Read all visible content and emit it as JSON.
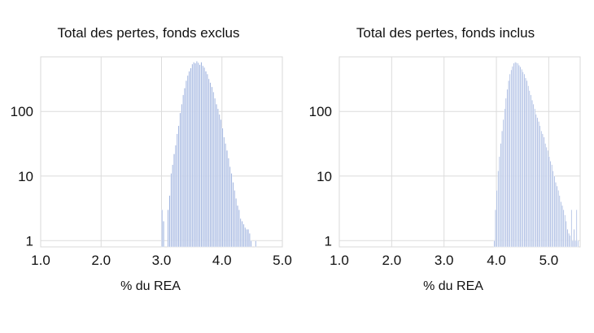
{
  "chart_data": [
    {
      "type": "bar",
      "title": "Total des pertes, fonds exclus",
      "xlabel": "% du REA",
      "ylabel": "",
      "x_scale": "linear",
      "y_scale": "log",
      "xlim": [
        1.0,
        5.0
      ],
      "ylim": [
        0.8,
        700
      ],
      "xticks": [
        1.0,
        2.0,
        3.0,
        4.0,
        5.0
      ],
      "xtick_labels": [
        "1.0",
        "2.0",
        "3.0",
        "4.0",
        "5.0"
      ],
      "yticks": [
        1,
        10,
        100
      ],
      "ytick_labels": [
        "1",
        "10",
        "100"
      ],
      "grid": true,
      "bar_color": "#9fb3df",
      "bin_width": 0.025,
      "x": [
        3.0,
        3.025,
        3.05,
        3.075,
        3.1,
        3.125,
        3.15,
        3.175,
        3.2,
        3.225,
        3.25,
        3.275,
        3.3,
        3.325,
        3.35,
        3.375,
        3.4,
        3.425,
        3.45,
        3.475,
        3.5,
        3.525,
        3.55,
        3.575,
        3.6,
        3.625,
        3.65,
        3.675,
        3.7,
        3.725,
        3.75,
        3.775,
        3.8,
        3.825,
        3.85,
        3.875,
        3.9,
        3.925,
        3.95,
        3.975,
        4.0,
        4.025,
        4.05,
        4.075,
        4.1,
        4.125,
        4.15,
        4.175,
        4.2,
        4.225,
        4.25,
        4.275,
        4.3,
        4.325,
        4.35,
        4.375,
        4.4,
        4.425,
        4.45,
        4.475,
        4.5,
        4.525,
        4.55,
        4.575
      ],
      "values": [
        3,
        2,
        0,
        0,
        3,
        5,
        11,
        15,
        22,
        30,
        45,
        60,
        95,
        130,
        180,
        230,
        300,
        360,
        420,
        470,
        540,
        580,
        560,
        600,
        570,
        530,
        580,
        510,
        480,
        420,
        380,
        320,
        280,
        240,
        200,
        160,
        130,
        110,
        90,
        75,
        55,
        40,
        32,
        25,
        19,
        14,
        11,
        8,
        6,
        4.5,
        3.5,
        3,
        2.2,
        2,
        1.8,
        1.6,
        1.5,
        1.5,
        1.3,
        1,
        0,
        0,
        1,
        0
      ]
    },
    {
      "type": "bar",
      "title": "Total des pertes, fonds inclus",
      "xlabel": "% du REA",
      "ylabel": "",
      "x_scale": "linear",
      "y_scale": "log",
      "xlim": [
        1.0,
        5.6
      ],
      "ylim": [
        0.8,
        700
      ],
      "xticks": [
        1.0,
        2.0,
        3.0,
        4.0,
        5.0
      ],
      "xtick_labels": [
        "1.0",
        "2.0",
        "3.0",
        "4.0",
        "5.0"
      ],
      "yticks": [
        1,
        10,
        100
      ],
      "ytick_labels": [
        "1",
        "10",
        "100"
      ],
      "grid": true,
      "bar_color": "#9fb3df",
      "bin_width": 0.025,
      "x": [
        3.95,
        3.975,
        4.0,
        4.025,
        4.05,
        4.075,
        4.1,
        4.125,
        4.15,
        4.175,
        4.2,
        4.225,
        4.25,
        4.275,
        4.3,
        4.325,
        4.35,
        4.375,
        4.4,
        4.425,
        4.45,
        4.475,
        4.5,
        4.525,
        4.55,
        4.575,
        4.6,
        4.625,
        4.65,
        4.675,
        4.7,
        4.725,
        4.75,
        4.775,
        4.8,
        4.825,
        4.85,
        4.875,
        4.9,
        4.925,
        4.95,
        4.975,
        5.0,
        5.025,
        5.05,
        5.075,
        5.1,
        5.125,
        5.15,
        5.175,
        5.2,
        5.225,
        5.25,
        5.275,
        5.3,
        5.325,
        5.35,
        5.375,
        5.4,
        5.425,
        5.45,
        5.475,
        5.5,
        5.525,
        5.55
      ],
      "values": [
        1,
        3,
        6,
        12,
        20,
        32,
        50,
        75,
        110,
        160,
        220,
        300,
        380,
        440,
        500,
        560,
        580,
        570,
        560,
        520,
        490,
        450,
        410,
        380,
        330,
        300,
        250,
        210,
        180,
        150,
        130,
        110,
        90,
        80,
        70,
        60,
        50,
        45,
        40,
        32,
        28,
        25,
        20,
        17,
        15,
        12,
        10,
        8,
        7,
        6,
        5,
        4,
        3.5,
        3,
        2.5,
        2,
        1.5,
        1.3,
        1.2,
        3,
        1,
        1.5,
        1,
        3,
        1
      ]
    }
  ]
}
